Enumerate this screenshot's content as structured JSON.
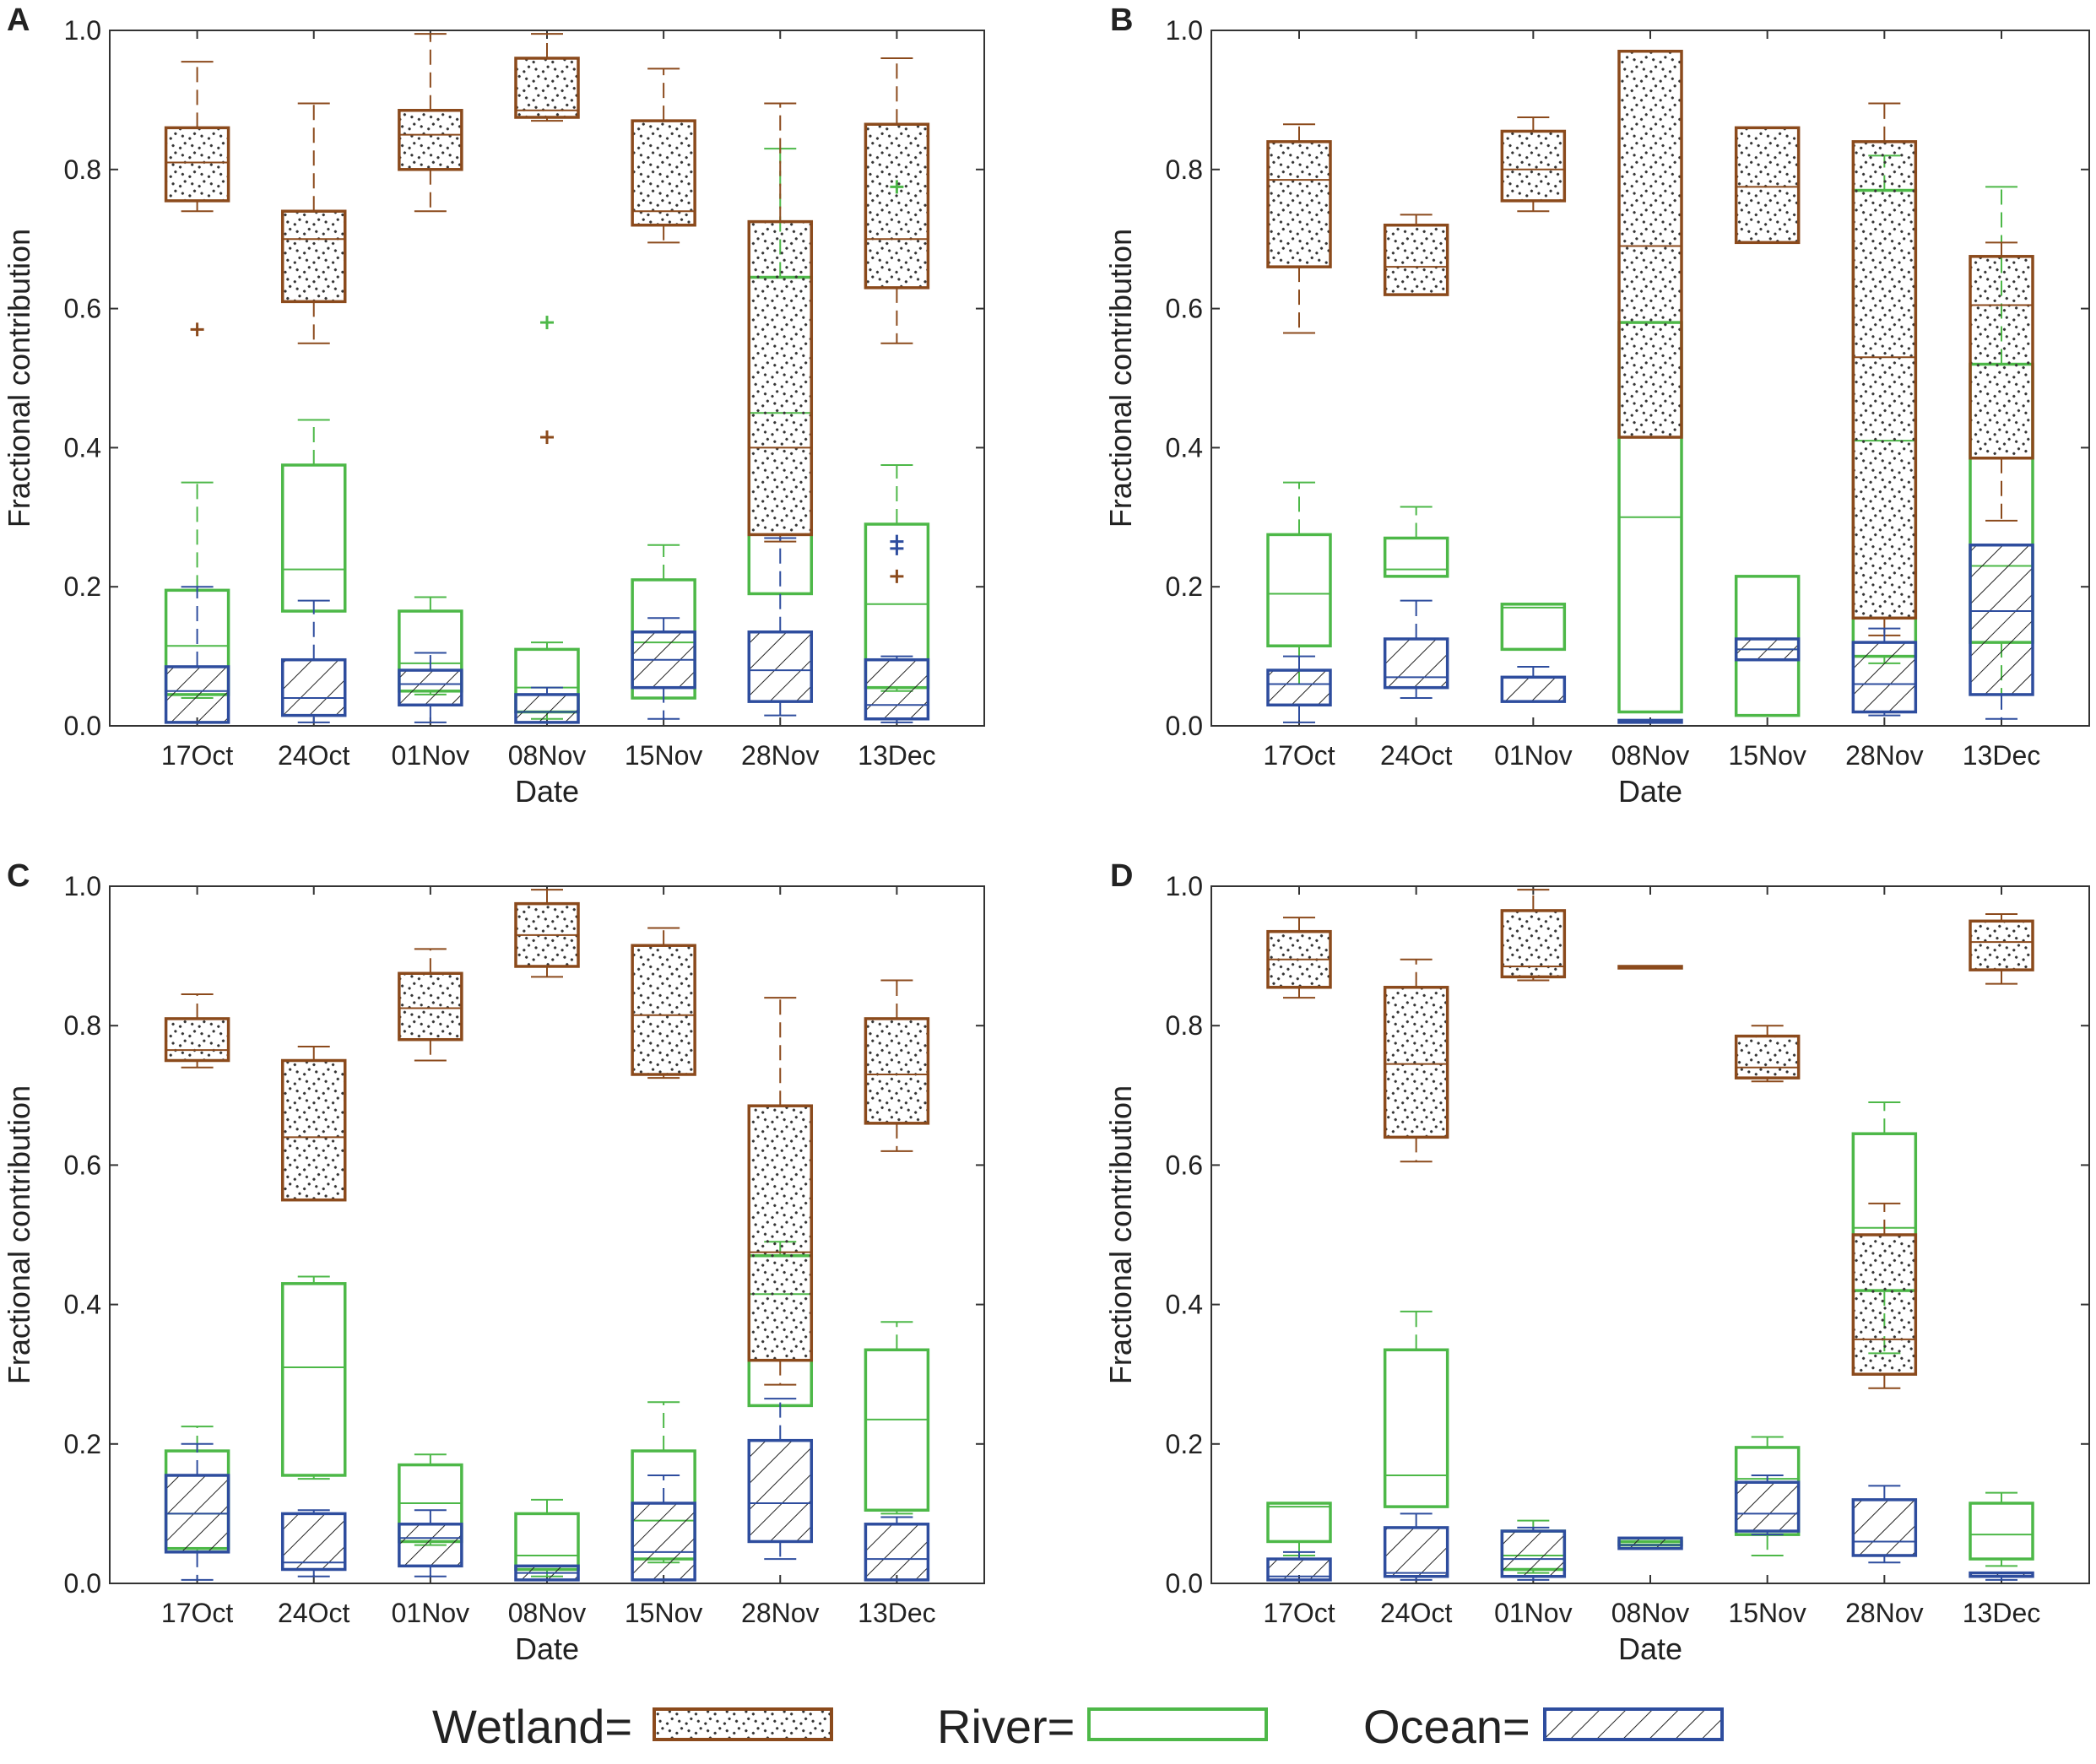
{
  "colors": {
    "wetland": "#8B4A1C",
    "river": "#4DB848",
    "ocean": "#2E4D9E",
    "axis": "#333333"
  },
  "legend": [
    {
      "key": "wetland",
      "label": "Wetland="
    },
    {
      "key": "river",
      "label": "River="
    },
    {
      "key": "ocean",
      "label": "Ocean="
    }
  ],
  "chart_data": [
    {
      "type": "box",
      "panel": "A",
      "xlabel": "Date",
      "ylabel": "Fractional contribution",
      "ylim": [
        0,
        1.0
      ],
      "yticks": [
        "0.0",
        "0.2",
        "0.4",
        "0.6",
        "0.8",
        "1.0"
      ],
      "categories": [
        "17Oct",
        "24Oct",
        "01Nov",
        "08Nov",
        "15Nov",
        "28Nov",
        "13Dec"
      ],
      "series": [
        {
          "name": "Wetland",
          "boxes": [
            {
              "min": 0.74,
              "q1": 0.755,
              "median": 0.81,
              "q3": 0.86,
              "max": 0.955,
              "outliers": [
                0.57
              ]
            },
            {
              "min": 0.55,
              "q1": 0.61,
              "median": 0.7,
              "q3": 0.74,
              "max": 0.895,
              "outliers": []
            },
            {
              "min": 0.74,
              "q1": 0.8,
              "median": 0.85,
              "q3": 0.885,
              "max": 0.995,
              "outliers": []
            },
            {
              "min": 0.87,
              "q1": 0.875,
              "median": 0.885,
              "q3": 0.96,
              "max": 0.995,
              "outliers": [
                0.415
              ]
            },
            {
              "min": 0.695,
              "q1": 0.72,
              "median": 0.74,
              "q3": 0.87,
              "max": 0.945,
              "outliers": []
            },
            {
              "min": 0.265,
              "q1": 0.275,
              "median": 0.4,
              "q3": 0.725,
              "max": 0.895,
              "outliers": []
            },
            {
              "min": 0.55,
              "q1": 0.63,
              "median": 0.7,
              "q3": 0.865,
              "max": 0.96,
              "outliers": [
                0.215
              ]
            }
          ]
        },
        {
          "name": "River",
          "boxes": [
            {
              "min": 0.04,
              "q1": 0.045,
              "median": 0.115,
              "q3": 0.195,
              "max": 0.35,
              "outliers": []
            },
            {
              "min": 0.165,
              "q1": 0.165,
              "median": 0.225,
              "q3": 0.375,
              "max": 0.44,
              "outliers": []
            },
            {
              "min": 0.045,
              "q1": 0.05,
              "median": 0.09,
              "q3": 0.165,
              "max": 0.185,
              "outliers": []
            },
            {
              "min": 0.01,
              "q1": 0.02,
              "median": 0.055,
              "q3": 0.11,
              "max": 0.12,
              "outliers": [
                0.58
              ]
            },
            {
              "min": 0.04,
              "q1": 0.04,
              "median": 0.12,
              "q3": 0.21,
              "max": 0.26,
              "outliers": []
            },
            {
              "min": 0.19,
              "q1": 0.19,
              "median": 0.45,
              "q3": 0.645,
              "max": 0.83,
              "outliers": []
            },
            {
              "min": 0.05,
              "q1": 0.055,
              "median": 0.175,
              "q3": 0.29,
              "max": 0.375,
              "outliers": [
                0.775
              ]
            }
          ]
        },
        {
          "name": "Ocean",
          "boxes": [
            {
              "min": 0.005,
              "q1": 0.005,
              "median": 0.05,
              "q3": 0.085,
              "max": 0.2,
              "outliers": []
            },
            {
              "min": 0.005,
              "q1": 0.015,
              "median": 0.04,
              "q3": 0.095,
              "max": 0.18,
              "outliers": []
            },
            {
              "min": 0.005,
              "q1": 0.03,
              "median": 0.06,
              "q3": 0.08,
              "max": 0.105,
              "outliers": []
            },
            {
              "min": 0.005,
              "q1": 0.005,
              "median": 0.02,
              "q3": 0.045,
              "max": 0.055,
              "outliers": []
            },
            {
              "min": 0.01,
              "q1": 0.055,
              "median": 0.095,
              "q3": 0.135,
              "max": 0.155,
              "outliers": []
            },
            {
              "min": 0.015,
              "q1": 0.035,
              "median": 0.08,
              "q3": 0.135,
              "max": 0.27,
              "outliers": []
            },
            {
              "min": 0.005,
              "q1": 0.01,
              "median": 0.03,
              "q3": 0.095,
              "max": 0.1,
              "outliers": [
                0.255,
                0.265
              ]
            }
          ]
        }
      ]
    },
    {
      "type": "box",
      "panel": "B",
      "xlabel": "Date",
      "ylabel": "Fractional contribution",
      "ylim": [
        0,
        1.0
      ],
      "yticks": [
        "0.0",
        "0.2",
        "0.4",
        "0.6",
        "0.8",
        "1.0"
      ],
      "categories": [
        "17Oct",
        "24Oct",
        "01Nov",
        "08Nov",
        "15Nov",
        "28Nov",
        "13Dec"
      ],
      "series": [
        {
          "name": "Wetland",
          "boxes": [
            {
              "min": 0.565,
              "q1": 0.66,
              "median": 0.785,
              "q3": 0.84,
              "max": 0.865,
              "outliers": []
            },
            {
              "min": 0.62,
              "q1": 0.62,
              "median": 0.66,
              "q3": 0.72,
              "max": 0.735,
              "outliers": []
            },
            {
              "min": 0.74,
              "q1": 0.755,
              "median": 0.8,
              "q3": 0.855,
              "max": 0.875,
              "outliers": []
            },
            {
              "min": 0.415,
              "q1": 0.415,
              "median": 0.69,
              "q3": 0.97,
              "max": 0.97,
              "outliers": []
            },
            {
              "min": 0.695,
              "q1": 0.695,
              "median": 0.775,
              "q3": 0.86,
              "max": 0.86,
              "outliers": []
            },
            {
              "min": 0.13,
              "q1": 0.155,
              "median": 0.53,
              "q3": 0.84,
              "max": 0.895,
              "outliers": []
            },
            {
              "min": 0.295,
              "q1": 0.385,
              "median": 0.605,
              "q3": 0.675,
              "max": 0.695,
              "outliers": []
            }
          ]
        },
        {
          "name": "River",
          "boxes": [
            {
              "min": 0.06,
              "q1": 0.115,
              "median": 0.19,
              "q3": 0.275,
              "max": 0.35,
              "outliers": []
            },
            {
              "min": 0.215,
              "q1": 0.215,
              "median": 0.225,
              "q3": 0.27,
              "max": 0.315,
              "outliers": []
            },
            {
              "min": 0.11,
              "q1": 0.11,
              "median": 0.17,
              "q3": 0.175,
              "max": 0.175,
              "outliers": []
            },
            {
              "min": 0.02,
              "q1": 0.02,
              "median": 0.3,
              "q3": 0.58,
              "max": 0.58,
              "outliers": []
            },
            {
              "min": 0.015,
              "q1": 0.015,
              "median": 0.11,
              "q3": 0.215,
              "max": 0.215,
              "outliers": []
            },
            {
              "min": 0.09,
              "q1": 0.1,
              "median": 0.41,
              "q3": 0.77,
              "max": 0.82,
              "outliers": []
            },
            {
              "min": 0.045,
              "q1": 0.12,
              "median": 0.23,
              "q3": 0.52,
              "max": 0.775,
              "outliers": []
            }
          ]
        },
        {
          "name": "Ocean",
          "boxes": [
            {
              "min": 0.005,
              "q1": 0.03,
              "median": 0.06,
              "q3": 0.08,
              "max": 0.1,
              "outliers": []
            },
            {
              "min": 0.04,
              "q1": 0.055,
              "median": 0.07,
              "q3": 0.125,
              "max": 0.18,
              "outliers": []
            },
            {
              "min": 0.035,
              "q1": 0.035,
              "median": 0.07,
              "q3": 0.07,
              "max": 0.085,
              "outliers": []
            },
            {
              "min": 0.005,
              "q1": 0.005,
              "median": 0.005,
              "q3": 0.008,
              "max": 0.008,
              "outliers": []
            },
            {
              "min": 0.095,
              "q1": 0.095,
              "median": 0.11,
              "q3": 0.125,
              "max": 0.125,
              "outliers": []
            },
            {
              "min": 0.015,
              "q1": 0.02,
              "median": 0.06,
              "q3": 0.12,
              "max": 0.14,
              "outliers": []
            },
            {
              "min": 0.01,
              "q1": 0.045,
              "median": 0.165,
              "q3": 0.26,
              "max": 0.26,
              "outliers": []
            }
          ]
        }
      ]
    },
    {
      "type": "box",
      "panel": "C",
      "xlabel": "Date",
      "ylabel": "Fractional contribution",
      "ylim": [
        0,
        1.0
      ],
      "yticks": [
        "0.0",
        "0.2",
        "0.4",
        "0.6",
        "0.8",
        "1.0"
      ],
      "categories": [
        "17Oct",
        "24Oct",
        "01Nov",
        "08Nov",
        "15Nov",
        "28Nov",
        "13Dec"
      ],
      "series": [
        {
          "name": "Wetland",
          "boxes": [
            {
              "min": 0.74,
              "q1": 0.75,
              "median": 0.765,
              "q3": 0.81,
              "max": 0.845,
              "outliers": []
            },
            {
              "min": 0.55,
              "q1": 0.55,
              "median": 0.64,
              "q3": 0.75,
              "max": 0.77,
              "outliers": []
            },
            {
              "min": 0.75,
              "q1": 0.78,
              "median": 0.825,
              "q3": 0.875,
              "max": 0.91,
              "outliers": []
            },
            {
              "min": 0.87,
              "q1": 0.885,
              "median": 0.93,
              "q3": 0.975,
              "max": 0.995,
              "outliers": []
            },
            {
              "min": 0.725,
              "q1": 0.73,
              "median": 0.815,
              "q3": 0.915,
              "max": 0.94,
              "outliers": []
            },
            {
              "min": 0.285,
              "q1": 0.32,
              "median": 0.475,
              "q3": 0.685,
              "max": 0.84,
              "outliers": []
            },
            {
              "min": 0.62,
              "q1": 0.66,
              "median": 0.73,
              "q3": 0.81,
              "max": 0.865,
              "outliers": []
            }
          ]
        },
        {
          "name": "River",
          "boxes": [
            {
              "min": 0.045,
              "q1": 0.05,
              "median": 0.1,
              "q3": 0.19,
              "max": 0.225,
              "outliers": []
            },
            {
              "min": 0.15,
              "q1": 0.155,
              "median": 0.31,
              "q3": 0.43,
              "max": 0.44,
              "outliers": []
            },
            {
              "min": 0.055,
              "q1": 0.06,
              "median": 0.115,
              "q3": 0.17,
              "max": 0.185,
              "outliers": []
            },
            {
              "min": 0.01,
              "q1": 0.02,
              "median": 0.04,
              "q3": 0.1,
              "max": 0.12,
              "outliers": []
            },
            {
              "min": 0.03,
              "q1": 0.035,
              "median": 0.09,
              "q3": 0.19,
              "max": 0.26,
              "outliers": []
            },
            {
              "min": 0.255,
              "q1": 0.255,
              "median": 0.415,
              "q3": 0.47,
              "max": 0.49,
              "outliers": []
            },
            {
              "min": 0.1,
              "q1": 0.105,
              "median": 0.235,
              "q3": 0.335,
              "max": 0.375,
              "outliers": []
            }
          ]
        },
        {
          "name": "Ocean",
          "boxes": [
            {
              "min": 0.005,
              "q1": 0.045,
              "median": 0.1,
              "q3": 0.155,
              "max": 0.2,
              "outliers": []
            },
            {
              "min": 0.01,
              "q1": 0.02,
              "median": 0.03,
              "q3": 0.1,
              "max": 0.105,
              "outliers": []
            },
            {
              "min": 0.01,
              "q1": 0.025,
              "median": 0.065,
              "q3": 0.085,
              "max": 0.105,
              "outliers": []
            },
            {
              "min": 0.005,
              "q1": 0.005,
              "median": 0.015,
              "q3": 0.025,
              "max": 0.025,
              "outliers": []
            },
            {
              "min": 0.005,
              "q1": 0.005,
              "median": 0.045,
              "q3": 0.115,
              "max": 0.155,
              "outliers": []
            },
            {
              "min": 0.035,
              "q1": 0.06,
              "median": 0.115,
              "q3": 0.205,
              "max": 0.265,
              "outliers": []
            },
            {
              "min": 0.005,
              "q1": 0.005,
              "median": 0.035,
              "q3": 0.085,
              "max": 0.095,
              "outliers": []
            }
          ]
        }
      ]
    },
    {
      "type": "box",
      "panel": "D",
      "xlabel": "Date",
      "ylabel": "Fractional contribution",
      "ylim": [
        0,
        1.0
      ],
      "yticks": [
        "0.0",
        "0.2",
        "0.4",
        "0.6",
        "0.8",
        "1.0"
      ],
      "categories": [
        "17Oct",
        "24Oct",
        "01Nov",
        "08Nov",
        "15Nov",
        "28Nov",
        "13Dec"
      ],
      "series": [
        {
          "name": "Wetland",
          "boxes": [
            {
              "min": 0.84,
              "q1": 0.855,
              "median": 0.895,
              "q3": 0.935,
              "max": 0.955,
              "outliers": []
            },
            {
              "min": 0.605,
              "q1": 0.64,
              "median": 0.745,
              "q3": 0.855,
              "max": 0.895,
              "outliers": []
            },
            {
              "min": 0.865,
              "q1": 0.87,
              "median": 0.885,
              "q3": 0.965,
              "max": 0.995,
              "outliers": []
            },
            {
              "min": 0.885,
              "q1": 0.885,
              "median": 0.885,
              "q3": 0.885,
              "max": 0.885,
              "outliers": []
            },
            {
              "min": 0.72,
              "q1": 0.725,
              "median": 0.74,
              "q3": 0.785,
              "max": 0.8,
              "outliers": []
            },
            {
              "min": 0.28,
              "q1": 0.3,
              "median": 0.35,
              "q3": 0.5,
              "max": 0.545,
              "outliers": []
            },
            {
              "min": 0.86,
              "q1": 0.88,
              "median": 0.92,
              "q3": 0.95,
              "max": 0.96,
              "outliers": []
            }
          ]
        },
        {
          "name": "River",
          "boxes": [
            {
              "min": 0.04,
              "q1": 0.06,
              "median": 0.11,
              "q3": 0.115,
              "max": 0.115,
              "outliers": []
            },
            {
              "min": 0.11,
              "q1": 0.11,
              "median": 0.155,
              "q3": 0.335,
              "max": 0.39,
              "outliers": []
            },
            {
              "min": 0.015,
              "q1": 0.02,
              "median": 0.04,
              "q3": 0.075,
              "max": 0.09,
              "outliers": []
            },
            {
              "min": 0.055,
              "q1": 0.055,
              "median": 0.06,
              "q3": 0.06,
              "max": 0.06,
              "outliers": []
            },
            {
              "min": 0.04,
              "q1": 0.07,
              "median": 0.15,
              "q3": 0.195,
              "max": 0.21,
              "outliers": []
            },
            {
              "min": 0.33,
              "q1": 0.42,
              "median": 0.51,
              "q3": 0.645,
              "max": 0.69,
              "outliers": []
            },
            {
              "min": 0.025,
              "q1": 0.035,
              "median": 0.07,
              "q3": 0.115,
              "max": 0.13,
              "outliers": []
            }
          ]
        },
        {
          "name": "Ocean",
          "boxes": [
            {
              "min": 0.005,
              "q1": 0.005,
              "median": 0.01,
              "q3": 0.035,
              "max": 0.045,
              "outliers": []
            },
            {
              "min": 0.005,
              "q1": 0.01,
              "median": 0.015,
              "q3": 0.08,
              "max": 0.1,
              "outliers": []
            },
            {
              "min": 0.005,
              "q1": 0.01,
              "median": 0.035,
              "q3": 0.075,
              "max": 0.08,
              "outliers": []
            },
            {
              "min": 0.05,
              "q1": 0.05,
              "median": 0.055,
              "q3": 0.065,
              "max": 0.065,
              "outliers": []
            },
            {
              "min": 0.07,
              "q1": 0.075,
              "median": 0.1,
              "q3": 0.145,
              "max": 0.155,
              "outliers": []
            },
            {
              "min": 0.03,
              "q1": 0.04,
              "median": 0.06,
              "q3": 0.12,
              "max": 0.14,
              "outliers": []
            },
            {
              "min": 0.005,
              "q1": 0.01,
              "median": 0.01,
              "q3": 0.015,
              "max": 0.015,
              "outliers": []
            }
          ]
        }
      ]
    }
  ]
}
